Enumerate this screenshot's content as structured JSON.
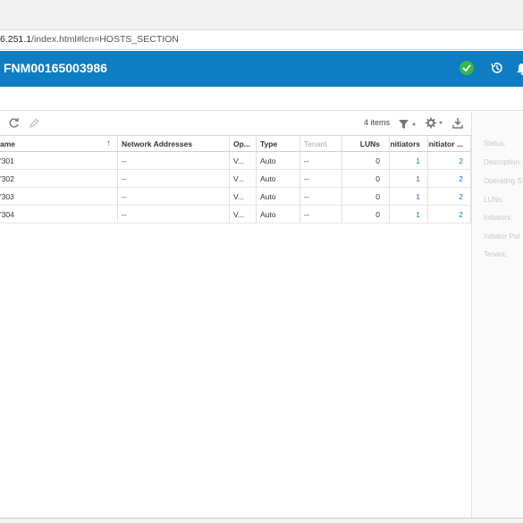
{
  "browser": {
    "url_host": "6.251.1",
    "url_path": "/index.html#lcn=HOSTS_SECTION"
  },
  "header": {
    "title": "FNM00165003986",
    "accent_color": "#0e7dc4",
    "icons": [
      "status-ok-icon",
      "history-icon",
      "bell-icon"
    ]
  },
  "toolbar": {
    "item_count": "4 items",
    "icons": [
      "refresh-icon",
      "edit-icon",
      "filter-icon",
      "gear-icon",
      "export-icon"
    ]
  },
  "grid": {
    "columns": {
      "name": "ame",
      "network_addresses": "Network Addresses",
      "os": "Op...",
      "type": "Type",
      "tenant": "Tenant",
      "luns": "LUNs",
      "initiators": "Initiators",
      "initiator_paths": "Initiator ..."
    },
    "rows": [
      {
        "name": "'301",
        "network_addresses": "--",
        "os": "V...",
        "type": "Auto",
        "tenant": "--",
        "luns": "0",
        "initiators": "1",
        "initiator_paths": "2"
      },
      {
        "name": "'302",
        "network_addresses": "--",
        "os": "V...",
        "type": "Auto",
        "tenant": "--",
        "luns": "0",
        "initiators": "1",
        "initiator_paths": "2"
      },
      {
        "name": "'303",
        "network_addresses": "--",
        "os": "V...",
        "type": "Auto",
        "tenant": "--",
        "luns": "0",
        "initiators": "1",
        "initiator_paths": "2"
      },
      {
        "name": "'304",
        "network_addresses": "--",
        "os": "V...",
        "type": "Auto",
        "tenant": "--",
        "luns": "0",
        "initiators": "1",
        "initiator_paths": "2"
      }
    ]
  },
  "details": {
    "labels": [
      "Status:",
      "Description:",
      "Operating S",
      "LUNs:",
      "Initiators:",
      "Initiator Pat",
      "Tenant:"
    ]
  }
}
